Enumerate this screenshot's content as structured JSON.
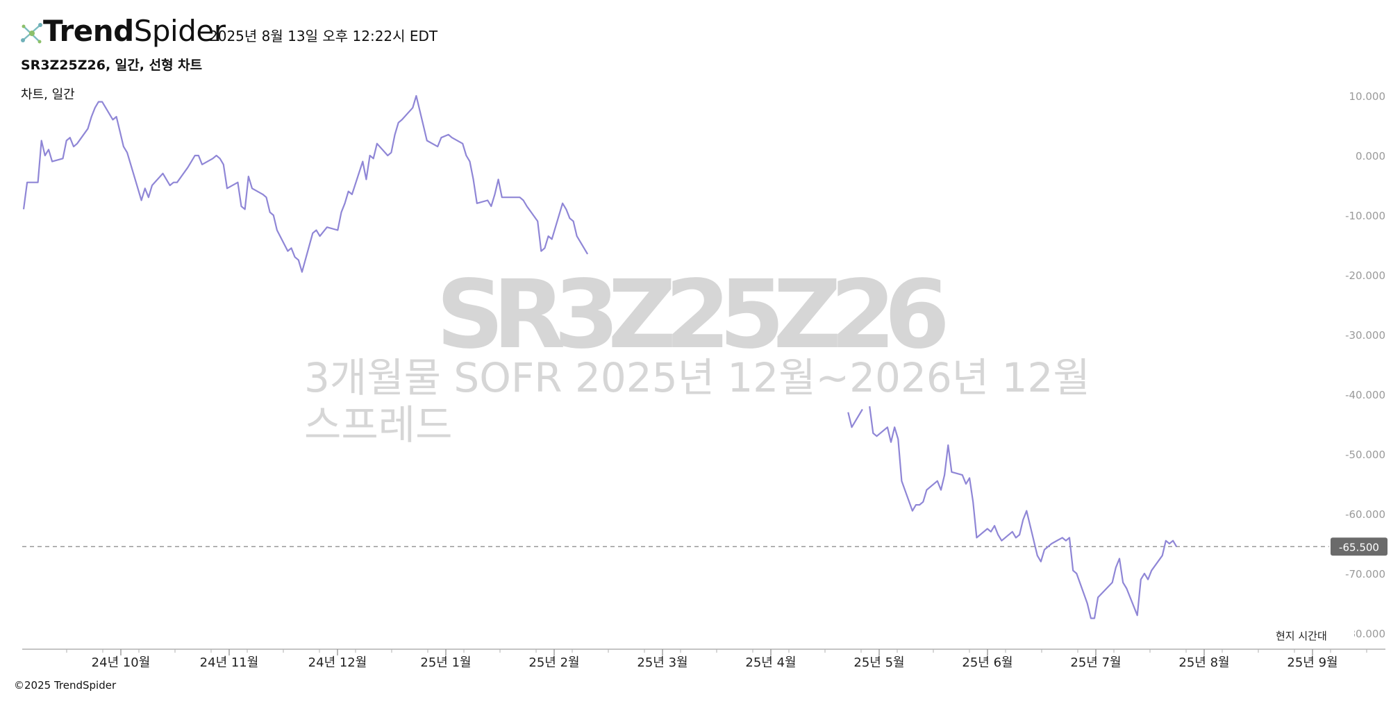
{
  "header": {
    "brand_bold": "Trend",
    "brand_regular": "Spider",
    "timestamp": "2025년 8월 13일 오후 12:22시 EDT",
    "logo_icon": "trendspider-logo-icon"
  },
  "chart_title": "SR3Z25Z26, 일간, 선형 차트",
  "series_label": "차트, 일간",
  "watermark": {
    "symbol": "SR3Z25Z26",
    "desc_line1": "3개월물 SOFR 2025년 12월~2026년 12월",
    "desc_line2": "스프레드"
  },
  "timezone_label": "현지 시간대",
  "footer": "©2025 TrendSpider",
  "colors": {
    "line": "#8f86d6",
    "price_tag_bg": "#6b6b6b",
    "grid_dash": "#9a9a9a",
    "watermark": "#d6d6d6"
  },
  "chart_data": {
    "type": "line",
    "title": "SR3Z25Z26, 일간, 선형 차트",
    "ylim": [
      -80,
      10
    ],
    "y_ticks": [
      10,
      0,
      -10,
      -20,
      -30,
      -40,
      -50,
      -60,
      -70,
      -80
    ],
    "y_tick_labels": [
      "10.000",
      "0.000",
      "-10.000",
      "-20.000",
      "-30.000",
      "-40.000",
      "-50.000",
      "-60.000",
      "-70.000",
      "-80.000"
    ],
    "x_tick_labels": [
      "24년 10월",
      "24년 11월",
      "24년 12월",
      "25년 1월",
      "25년 2월",
      "25년 3월",
      "25년 4월",
      "25년 5월",
      "25년 6월",
      "25년 7월",
      "25년 8월",
      "25년 9월"
    ],
    "last_value": -65.5,
    "last_value_label": "-65.500",
    "series": [
      {
        "segments": [
          [
            [
              "2024-09-05",
              -9
            ],
            [
              "2024-09-06",
              -4.5
            ],
            [
              "2024-09-09",
              -4.5
            ],
            [
              "2024-09-10",
              2.5
            ],
            [
              "2024-09-11",
              0
            ],
            [
              "2024-09-12",
              1
            ],
            [
              "2024-09-13",
              -1
            ],
            [
              "2024-09-16",
              -0.5
            ],
            [
              "2024-09-17",
              2.5
            ],
            [
              "2024-09-18",
              3
            ],
            [
              "2024-09-19",
              1.5
            ],
            [
              "2024-09-20",
              2
            ],
            [
              "2024-09-23",
              4.5
            ],
            [
              "2024-09-24",
              6.5
            ],
            [
              "2024-09-25",
              8
            ],
            [
              "2024-09-26",
              9
            ],
            [
              "2024-09-27",
              9
            ],
            [
              "2024-09-30",
              6
            ],
            [
              "2024-10-01",
              6.5
            ],
            [
              "2024-10-02",
              4
            ],
            [
              "2024-10-03",
              1.5
            ],
            [
              "2024-10-04",
              0.5
            ],
            [
              "2024-10-07",
              -5.5
            ],
            [
              "2024-10-08",
              -7.5
            ],
            [
              "2024-10-09",
              -5.5
            ],
            [
              "2024-10-10",
              -7
            ],
            [
              "2024-10-11",
              -5
            ],
            [
              "2024-10-14",
              -3
            ],
            [
              "2024-10-15",
              -4
            ],
            [
              "2024-10-16",
              -5
            ],
            [
              "2024-10-17",
              -4.5
            ],
            [
              "2024-10-18",
              -4.5
            ],
            [
              "2024-10-21",
              -2
            ],
            [
              "2024-10-22",
              -1
            ],
            [
              "2024-10-23",
              0
            ],
            [
              "2024-10-24",
              0
            ],
            [
              "2024-10-25",
              -1.5
            ],
            [
              "2024-10-28",
              -0.5
            ],
            [
              "2024-10-29",
              0
            ],
            [
              "2024-10-30",
              -0.5
            ],
            [
              "2024-10-31",
              -1.5
            ],
            [
              "2024-11-01",
              -5.5
            ],
            [
              "2024-11-04",
              -4.5
            ],
            [
              "2024-11-05",
              -8.5
            ],
            [
              "2024-11-06",
              -9
            ],
            [
              "2024-11-07",
              -3.5
            ],
            [
              "2024-11-08",
              -5.5
            ],
            [
              "2024-11-11",
              -6.5
            ],
            [
              "2024-11-12",
              -7
            ],
            [
              "2024-11-13",
              -9.5
            ],
            [
              "2024-11-14",
              -10
            ],
            [
              "2024-11-15",
              -12.5
            ],
            [
              "2024-11-18",
              -16
            ],
            [
              "2024-11-19",
              -15.5
            ],
            [
              "2024-11-20",
              -17
            ],
            [
              "2024-11-21",
              -17.5
            ],
            [
              "2024-11-22",
              -19.5
            ],
            [
              "2024-11-25",
              -13
            ],
            [
              "2024-11-26",
              -12.5
            ],
            [
              "2024-11-27",
              -13.5
            ],
            [
              "2024-11-29",
              -12
            ],
            [
              "2024-12-02",
              -12.5
            ],
            [
              "2024-12-03",
              -9.5
            ],
            [
              "2024-12-04",
              -8
            ],
            [
              "2024-12-05",
              -6
            ],
            [
              "2024-12-06",
              -6.5
            ],
            [
              "2024-12-09",
              -1
            ],
            [
              "2024-12-10",
              -4
            ],
            [
              "2024-12-11",
              0
            ],
            [
              "2024-12-12",
              -0.5
            ],
            [
              "2024-12-13",
              2
            ],
            [
              "2024-12-16",
              0
            ],
            [
              "2024-12-17",
              0.5
            ],
            [
              "2024-12-18",
              3.5
            ],
            [
              "2024-12-19",
              5.5
            ],
            [
              "2024-12-20",
              6
            ],
            [
              "2024-12-23",
              8
            ],
            [
              "2024-12-24",
              10
            ],
            [
              "2024-12-26",
              5
            ],
            [
              "2024-12-27",
              2.5
            ],
            [
              "2024-12-30",
              1.5
            ],
            [
              "2024-12-31",
              3
            ],
            [
              "2025-01-02",
              3.5
            ],
            [
              "2025-01-03",
              3
            ],
            [
              "2025-01-06",
              2
            ],
            [
              "2025-01-07",
              0
            ],
            [
              "2025-01-08",
              -1
            ],
            [
              "2025-01-09",
              -4
            ],
            [
              "2025-01-10",
              -8
            ],
            [
              "2025-01-13",
              -7.5
            ],
            [
              "2025-01-14",
              -8.5
            ],
            [
              "2025-01-15",
              -6.5
            ],
            [
              "2025-01-16",
              -4
            ],
            [
              "2025-01-17",
              -7
            ],
            [
              "2025-01-21",
              -7
            ],
            [
              "2025-01-22",
              -7
            ],
            [
              "2025-01-23",
              -7.5
            ],
            [
              "2025-01-24",
              -8.5
            ],
            [
              "2025-01-27",
              -11
            ],
            [
              "2025-01-28",
              -16
            ],
            [
              "2025-01-29",
              -15.5
            ],
            [
              "2025-01-30",
              -13.5
            ],
            [
              "2025-01-31",
              -14
            ],
            [
              "2025-02-03",
              -8
            ],
            [
              "2025-02-04",
              -9
            ],
            [
              "2025-02-05",
              -10.5
            ],
            [
              "2025-02-06",
              -11
            ],
            [
              "2025-02-07",
              -13.5
            ],
            [
              "2025-02-10",
              -16.5
            ]
          ],
          [
            [
              "2025-04-24",
              -43
            ],
            [
              "2025-04-25",
              -45.5
            ],
            [
              "2025-04-28",
              -42.5
            ]
          ],
          [
            [
              "2025-04-30",
              -42
            ],
            [
              "2025-05-01",
              -46.5
            ],
            [
              "2025-05-02",
              -47
            ],
            [
              "2025-05-05",
              -45.5
            ],
            [
              "2025-05-06",
              -48
            ],
            [
              "2025-05-07",
              -45.5
            ],
            [
              "2025-05-08",
              -47.5
            ],
            [
              "2025-05-09",
              -54.5
            ],
            [
              "2025-05-12",
              -59.5
            ],
            [
              "2025-05-13",
              -58.5
            ],
            [
              "2025-05-14",
              -58.5
            ],
            [
              "2025-05-15",
              -58
            ],
            [
              "2025-05-16",
              -56
            ],
            [
              "2025-05-19",
              -54.5
            ],
            [
              "2025-05-20",
              -56
            ],
            [
              "2025-05-21",
              -53.5
            ],
            [
              "2025-05-22",
              -48.5
            ],
            [
              "2025-05-23",
              -53
            ],
            [
              "2025-05-26",
              -53.5
            ],
            [
              "2025-05-27",
              -55
            ],
            [
              "2025-05-28",
              -54
            ],
            [
              "2025-05-29",
              -58
            ],
            [
              "2025-05-30",
              -64
            ],
            [
              "2025-06-02",
              -62.5
            ],
            [
              "2025-06-03",
              -63
            ],
            [
              "2025-06-04",
              -62
            ],
            [
              "2025-06-05",
              -63.5
            ],
            [
              "2025-06-06",
              -64.5
            ],
            [
              "2025-06-09",
              -63
            ],
            [
              "2025-06-10",
              -64
            ],
            [
              "2025-06-11",
              -63.5
            ],
            [
              "2025-06-12",
              -61
            ],
            [
              "2025-06-13",
              -59.5
            ],
            [
              "2025-06-16",
              -67
            ],
            [
              "2025-06-17",
              -68
            ],
            [
              "2025-06-18",
              -66
            ],
            [
              "2025-06-19",
              -65.5
            ],
            [
              "2025-06-20",
              -65
            ],
            [
              "2025-06-23",
              -64
            ],
            [
              "2025-06-24",
              -64.5
            ],
            [
              "2025-06-25",
              -64
            ],
            [
              "2025-06-26",
              -69.5
            ],
            [
              "2025-06-27",
              -70
            ],
            [
              "2025-06-30",
              -75
            ],
            [
              "2025-07-01",
              -77.5
            ],
            [
              "2025-07-02",
              -77.5
            ],
            [
              "2025-07-03",
              -74
            ],
            [
              "2025-07-07",
              -71.5
            ],
            [
              "2025-07-08",
              -69
            ],
            [
              "2025-07-09",
              -67.5
            ],
            [
              "2025-07-10",
              -71.5
            ],
            [
              "2025-07-11",
              -72.5
            ],
            [
              "2025-07-14",
              -77
            ],
            [
              "2025-07-15",
              -71
            ],
            [
              "2025-07-16",
              -70
            ],
            [
              "2025-07-17",
              -71
            ],
            [
              "2025-07-18",
              -69.5
            ],
            [
              "2025-07-21",
              -67
            ],
            [
              "2025-07-22",
              -64.5
            ],
            [
              "2025-07-23",
              -65
            ],
            [
              "2025-07-24",
              -64.5
            ],
            [
              "2025-07-25",
              -65.5
            ]
          ]
        ]
      }
    ]
  }
}
